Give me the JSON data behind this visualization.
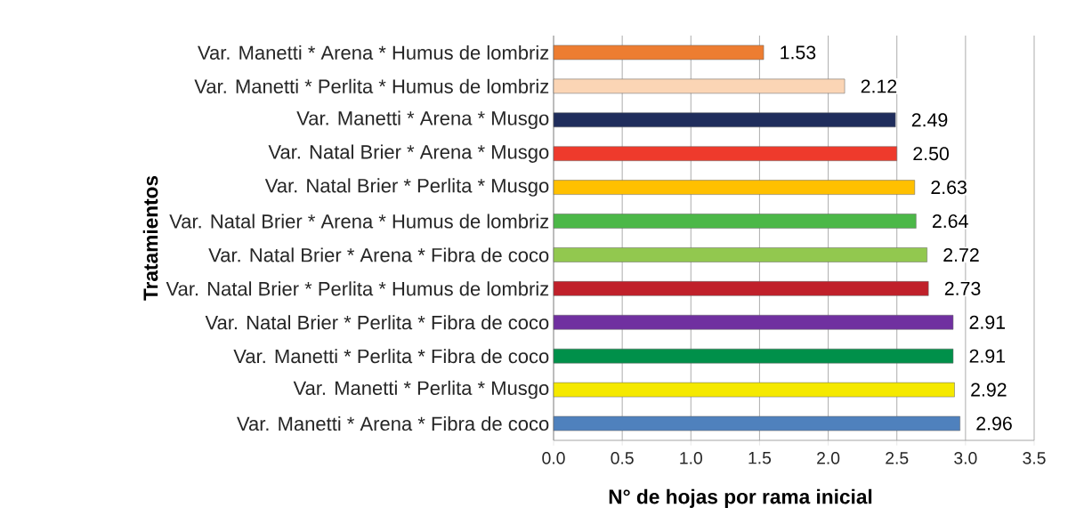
{
  "chart_data": {
    "type": "bar",
    "orientation": "horizontal",
    "xlabel": "N° de hojas por rama inicial",
    "ylabel": "Tratamientos",
    "categories": [
      "Var. Manetti * Arena * Humus de lombriz",
      "Var. Manetti * Perlita * Humus de lombriz",
      "Var. Manetti * Arena * Musgo",
      "Var. Natal Brier * Arena * Musgo",
      "Var. Natal Brier * Perlita * Musgo",
      "Var. Natal Brier * Arena * Humus de lombriz",
      "Var. Natal Brier * Arena * Fibra de coco",
      "Var. Natal Brier * Perlita * Humus de lombriz",
      "Var. Natal Brier * Perlita * Fibra de coco",
      "Var. Manetti * Perlita * Fibra de coco",
      "Var. Manetti * Perlita * Musgo",
      "Var. Manetti * Arena * Fibra de coco"
    ],
    "values": [
      1.53,
      2.12,
      2.49,
      2.5,
      2.63,
      2.64,
      2.72,
      2.73,
      2.91,
      2.91,
      2.92,
      2.96
    ],
    "value_labels": [
      "1.53",
      "2.12",
      "2.49",
      "2.50",
      "2.63",
      "2.64",
      "2.72",
      "2.73",
      "2.91",
      "2.91",
      "2.92",
      "2.96"
    ],
    "colors": [
      "#ed7d31",
      "#fbd5b5",
      "#1f2d5c",
      "#ee3a2c",
      "#ffc000",
      "#4cb848",
      "#92c84f",
      "#c0202a",
      "#7030a0",
      "#00904a",
      "#f5e900",
      "#4f81bd"
    ],
    "xlim": [
      0,
      3.5
    ],
    "xticks": [
      {
        "value": 0,
        "label": "0.0"
      },
      {
        "value": 0.5,
        "label": "0.5"
      },
      {
        "value": 1,
        "label": "1.0"
      },
      {
        "value": 1.5,
        "label": "1.5"
      },
      {
        "value": 2,
        "label": "2.0"
      },
      {
        "value": 2.5,
        "label": "2.5"
      },
      {
        "value": 3,
        "label": "3.0"
      },
      {
        "value": 3.5,
        "label": "3.5"
      }
    ],
    "grid": "x"
  }
}
